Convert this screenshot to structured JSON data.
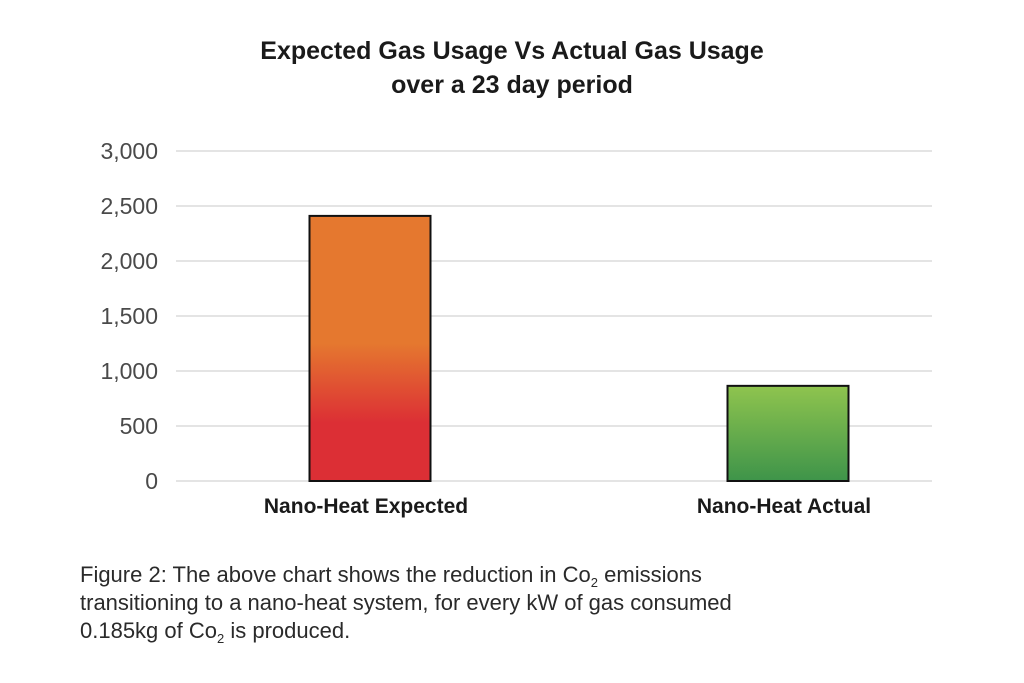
{
  "chart_data": {
    "type": "bar",
    "title_line1": "Expected Gas Usage Vs Actual Gas Usage",
    "title_line2": "over a 23 day period",
    "xlabel": "",
    "ylabel": "",
    "categories": [
      "Nano-Heat Expected",
      "Nano-Heat Actual"
    ],
    "values": [
      2410,
      865
    ],
    "ylim": [
      0,
      3000
    ],
    "yticks": [
      0,
      500,
      1000,
      1500,
      2000,
      2500,
      3000
    ],
    "ytick_labels": [
      "0",
      "500",
      "1,000",
      "1,500",
      "2,000",
      "2,500",
      "3,000"
    ],
    "grid": true,
    "legend": "none",
    "colors": {
      "expected_top": "#e5782f",
      "expected_bottom": "#dc2f35",
      "actual_top": "#8fc44e",
      "actual_bottom": "#3e944a",
      "bar_outline": "#111111",
      "gridline": "#c8c8c8"
    }
  },
  "caption": {
    "line1_pre": "Figure 2: The above chart shows the reduction in Co",
    "line1_sub": "2",
    "line1_post": " emissions",
    "line2": "transitioning to a nano-heat system, for every kW of gas consumed",
    "line3_pre": "0.185kg of Co",
    "line3_sub": "2",
    "line3_post": " is produced."
  }
}
